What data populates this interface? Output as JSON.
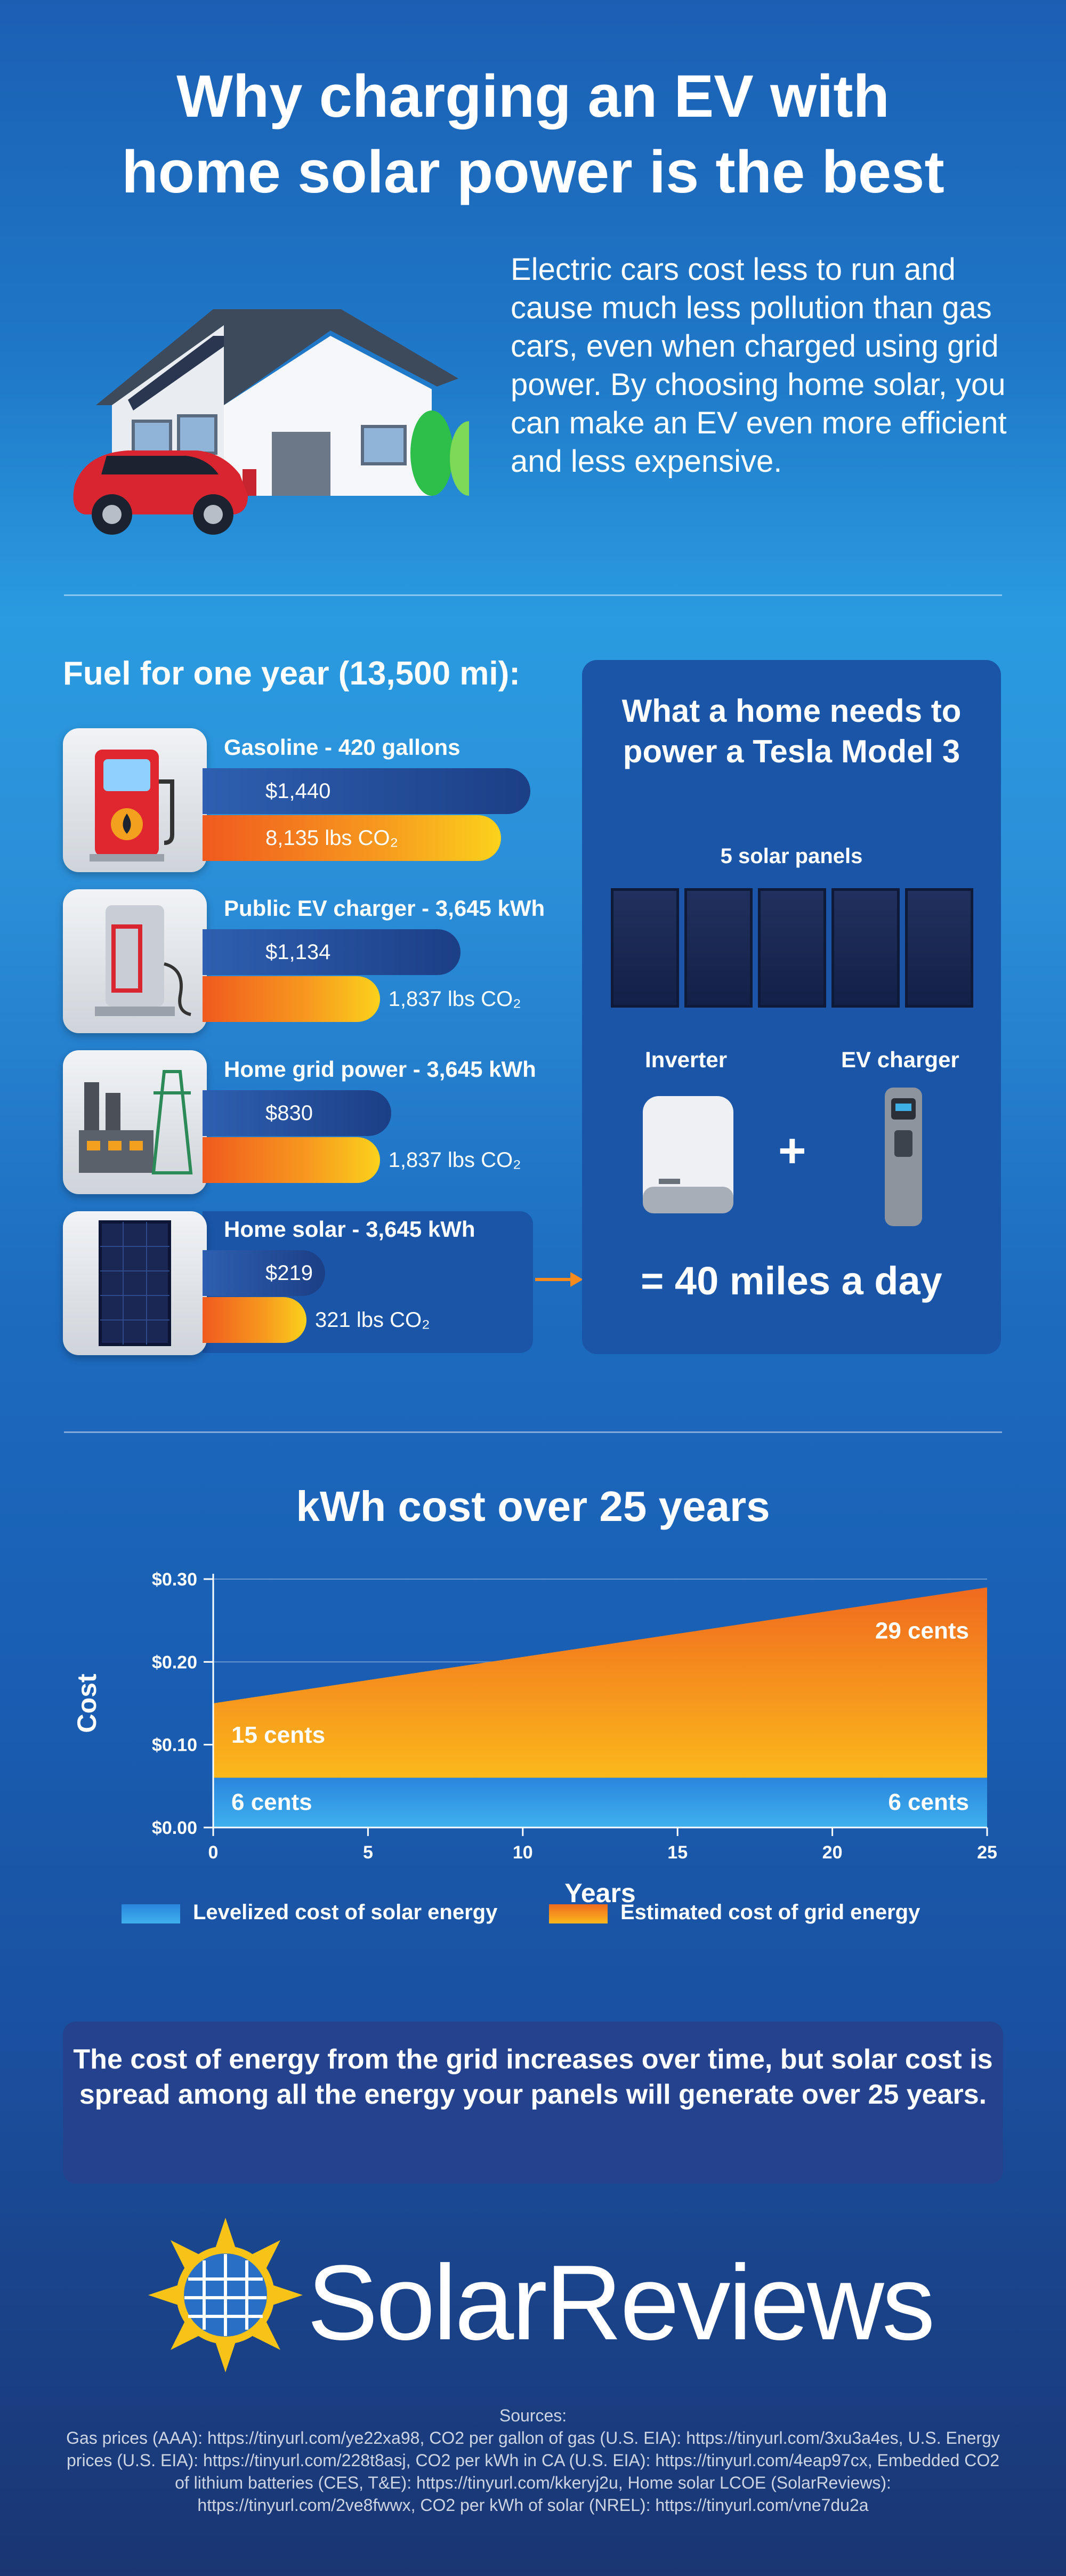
{
  "header": {
    "title_line1": "Why charging an EV with",
    "title_line2": "home solar power is the best",
    "intro": "Electric cars cost less to run and cause much less pollution than gas cars, even when charged using grid power. By choosing home solar, you can make an EV even more efficient and less expensive."
  },
  "fuel": {
    "heading": "Fuel for one year (13,500 mi):",
    "items": [
      {
        "label": "Gasoline - 420 gallons",
        "cost": "$1,440",
        "co2": "8,135 lbs CO₂",
        "icon": "gas-pump-icon"
      },
      {
        "label": "Public EV charger - 3,645 kWh",
        "cost": "$1,134",
        "co2": "1,837 lbs CO₂",
        "icon": "ev-charger-icon"
      },
      {
        "label": "Home grid power - 3,645 kWh",
        "cost": "$830",
        "co2": "1,837 lbs CO₂",
        "icon": "power-plant-icon"
      },
      {
        "label": "Home solar - 3,645 kWh",
        "cost": "$219",
        "co2": "321 lbs CO₂",
        "icon": "solar-panel-icon"
      }
    ],
    "values": {
      "cost": [
        1440,
        1134,
        830,
        219
      ],
      "co2_lbs": [
        8135,
        1837,
        1837,
        321
      ]
    }
  },
  "tesla": {
    "heading": "What a home needs to power a Tesla Model 3",
    "panels_label": "5 solar panels",
    "panel_count": 5,
    "inverter_label": "Inverter",
    "charger_label": "EV charger",
    "plus": "+",
    "result": "= 40 miles a day"
  },
  "chart_data": {
    "type": "area",
    "title": "kWh cost over 25 years",
    "xlabel": "Years",
    "ylabel": "Cost",
    "x_ticks": [
      "0",
      "5",
      "10",
      "15",
      "20",
      "25"
    ],
    "y_ticks": [
      "$0.00",
      "$0.10",
      "$0.20",
      "$0.30"
    ],
    "xlim": [
      0,
      25
    ],
    "ylim": [
      0,
      0.3
    ],
    "series": [
      {
        "name": "Levelized cost of solar energy",
        "x": [
          0,
          25
        ],
        "y": [
          0.06,
          0.06
        ],
        "color": "#2f8fe0",
        "start_label": "6 cents",
        "end_label": "6 cents"
      },
      {
        "name": "Estimated cost of grid energy",
        "x": [
          0,
          25
        ],
        "y": [
          0.15,
          0.29
        ],
        "color": "#f58a1f",
        "start_label": "15 cents",
        "end_label": "29 cents"
      }
    ],
    "grid": true,
    "legend": "bottom"
  },
  "note": "The cost of energy from the grid increases over time, but solar cost is spread among all the energy your panels will generate over 25 years.",
  "brand": {
    "name": "SolarReviews"
  },
  "sources": {
    "heading": "Sources:",
    "text": "Gas prices (AAA): https://tinyurl.com/ye22xa98, CO2 per gallon of gas (U.S. EIA): https://tinyurl.com/3xu3a4es, U.S. Energy prices (U.S. EIA): https://tinyurl.com/228t8asj, CO2 per kWh in CA (U.S. EIA): https://tinyurl.com/4eap97cx, Embedded CO2 of lithium batteries (CES, T&E): https://tinyurl.com/kkeryj2u, Home solar LCOE (SolarReviews): https://tinyurl.com/2ve8fwwx, CO2 per kWh of solar (NREL): https://tinyurl.com/vne7du2a"
  }
}
